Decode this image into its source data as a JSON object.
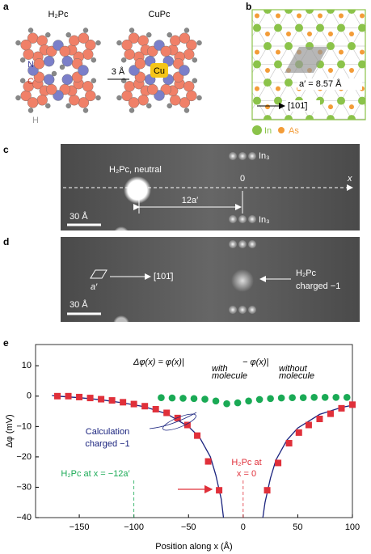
{
  "panel_a": {
    "label": "a",
    "molecule_1": "H₂Pc",
    "molecule_2": "CuPc",
    "atom_n": "N",
    "atom_c": "C",
    "atom_h": "H",
    "atom_cu": "Cu",
    "distance": "3 Å"
  },
  "panel_b": {
    "label": "b",
    "lattice_constant": "a′ = 8.57 Å",
    "direction": "[101̄]",
    "legend": [
      "In",
      "As"
    ]
  },
  "panel_c": {
    "label": "c",
    "molecule": "H₂Pc, neutral",
    "origin": "0",
    "axis": "x",
    "spacing": "12a′",
    "trimer_top": "In₃",
    "trimer_bottom": "In₃",
    "scale": "30 Å"
  },
  "panel_d": {
    "label": "d",
    "cell": "a′",
    "direction": "[101̄]",
    "molecule": "H₂Pc",
    "charge": "charged −1",
    "scale": "30 Å"
  },
  "chart_data": {
    "type": "scatter",
    "label": "e",
    "formula": [
      "Δφ(x) = φ(x)|",
      "with",
      "molecule",
      "− φ(x)|",
      "without",
      "molecule"
    ],
    "xlabel": "Position along x (Å)",
    "ylabel": "Δφ (mV)",
    "xlim": [
      -190,
      100
    ],
    "ylim": [
      -40,
      17
    ],
    "xticks": [
      {
        "value": -150,
        "label": "−150"
      },
      {
        "value": -100,
        "label": "−100"
      },
      {
        "value": -50,
        "label": "−50"
      },
      0,
      50,
      100
    ],
    "yticks": [
      10,
      0,
      {
        "value": -10,
        "label": "−10"
      },
      {
        "value": -20,
        "label": "−20"
      },
      {
        "value": -30,
        "label": "−30"
      },
      {
        "value": -40,
        "label": "−40"
      }
    ],
    "series": [
      {
        "style": "line",
        "color": "#1a237e",
        "x": [
          -175,
          -170,
          -150,
          -130,
          -110,
          -90,
          -70,
          -50,
          -40,
          -30,
          -25,
          -20,
          -18,
          0,
          18,
          20,
          25,
          30,
          40,
          50,
          70,
          90,
          100
        ],
        "values": [
          0.2,
          0,
          -0.5,
          -1.2,
          -2.2,
          -3.5,
          -5.8,
          -10,
          -13.5,
          -20,
          -26,
          -34,
          -40,
          null,
          -40,
          -35,
          -27,
          -21,
          -14.5,
          -10.5,
          -6,
          -3.7,
          -3
        ]
      },
      {
        "style": "circle",
        "color": "#1aaa55",
        "x": [
          -75,
          -65,
          -55,
          -45,
          -35,
          -25,
          -15,
          -5,
          5,
          15,
          25,
          35,
          45,
          55,
          65,
          75,
          85,
          95
        ],
        "values": [
          -0.5,
          -0.6,
          -0.7,
          -0.8,
          -1,
          -1.6,
          -2.5,
          -2.2,
          -1.6,
          -1.1,
          -0.8,
          -0.6,
          -0.5,
          -0.5,
          -0.4,
          -0.4,
          -0.4,
          -0.4
        ]
      },
      {
        "style": "square",
        "color": "#e0303a",
        "x": [
          -170,
          -160,
          -150,
          -140,
          -130,
          -120,
          -110,
          -100,
          -90,
          -80,
          -70,
          -60,
          -51,
          -42,
          -32,
          -22,
          22,
          32,
          42,
          51,
          60,
          70,
          80,
          90,
          100
        ],
        "values": [
          0,
          0,
          -0.3,
          -0.6,
          -1,
          -1.4,
          -2,
          -2.6,
          -3.3,
          -4.3,
          -5.5,
          -7.2,
          -9.5,
          -13,
          -21.5,
          -31,
          -31,
          -22,
          -15.5,
          -12,
          -9.5,
          -7.5,
          -5.8,
          -4,
          -2.8
        ]
      }
    ],
    "annotations": {
      "calculation": [
        "Calculation",
        "charged −1"
      ],
      "neutral": "H₂Pc at x = −12a′",
      "charged": [
        "H₂Pc at",
        "x = 0"
      ]
    },
    "vlines": [
      {
        "x": -100,
        "color": "#1aaa55"
      },
      {
        "x": 0,
        "color": "#e0303a"
      }
    ]
  }
}
